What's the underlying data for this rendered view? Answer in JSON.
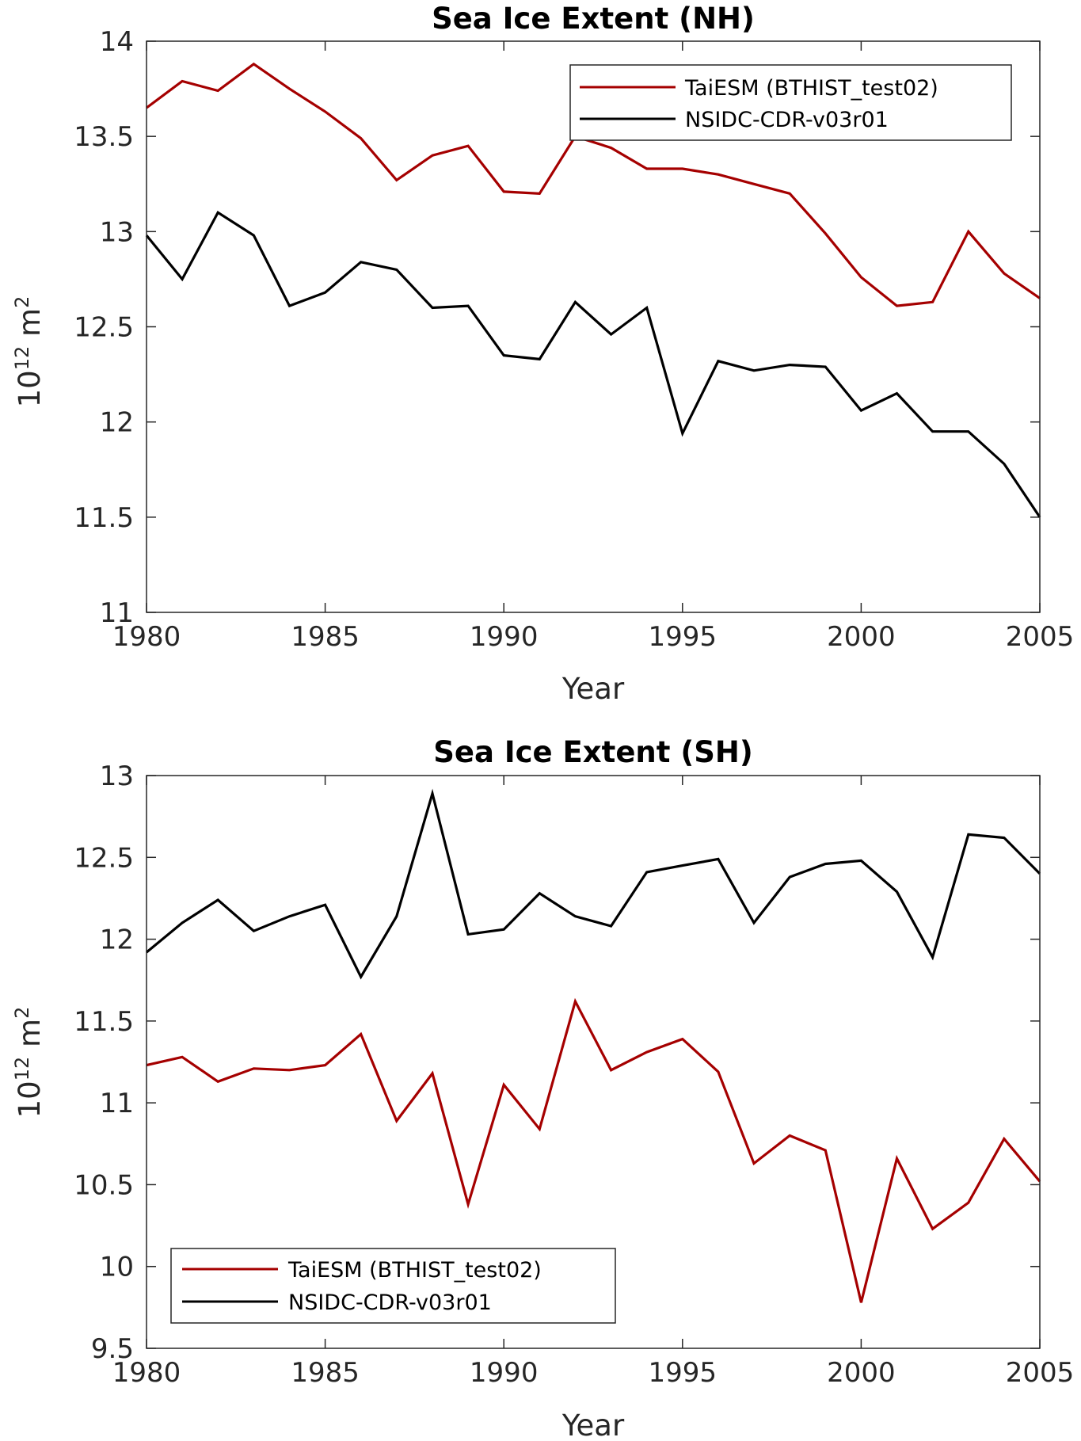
{
  "chart_data": [
    {
      "type": "line",
      "title": "Sea Ice Extent (NH)",
      "xlabel": "Year",
      "ylabel_base": "10",
      "ylabel_exp": "12",
      "ylabel_unit": "m",
      "ylabel_unit_exp": "2",
      "xlim": [
        1980,
        2005
      ],
      "ylim": [
        11,
        14
      ],
      "xticks": [
        1980,
        1985,
        1990,
        1995,
        2000,
        2005
      ],
      "yticks": [
        11,
        11.5,
        12,
        12.5,
        13,
        13.5,
        14
      ],
      "legend_position": "top-right",
      "grid": false,
      "x": [
        1980,
        1981,
        1982,
        1983,
        1984,
        1985,
        1986,
        1987,
        1988,
        1989,
        1990,
        1991,
        1992,
        1993,
        1994,
        1995,
        1996,
        1997,
        1998,
        1999,
        2000,
        2001,
        2002,
        2003,
        2004,
        2005
      ],
      "series": [
        {
          "name": "TaiESM (BTHIST_test02)",
          "color": "#a50000",
          "values": [
            13.65,
            13.79,
            13.74,
            13.88,
            13.75,
            13.63,
            13.49,
            13.27,
            13.4,
            13.45,
            13.21,
            13.2,
            13.5,
            13.44,
            13.33,
            13.33,
            13.3,
            13.25,
            13.2,
            12.99,
            12.76,
            12.61,
            12.63,
            13.0,
            12.78,
            12.65
          ]
        },
        {
          "name": "NSIDC-CDR-v03r01",
          "color": "#000000",
          "values": [
            12.98,
            12.75,
            13.1,
            12.98,
            12.61,
            12.68,
            12.84,
            12.8,
            12.6,
            12.61,
            12.35,
            12.33,
            12.63,
            12.46,
            12.6,
            11.94,
            12.32,
            12.27,
            12.3,
            12.29,
            12.06,
            12.15,
            11.95,
            11.95,
            11.78,
            11.5
          ]
        }
      ]
    },
    {
      "type": "line",
      "title": "Sea Ice Extent (SH)",
      "xlabel": "Year",
      "ylabel_base": "10",
      "ylabel_exp": "12",
      "ylabel_unit": "m",
      "ylabel_unit_exp": "2",
      "xlim": [
        1980,
        2005
      ],
      "ylim": [
        9.5,
        13
      ],
      "xticks": [
        1980,
        1985,
        1990,
        1995,
        2000,
        2005
      ],
      "yticks": [
        9.5,
        10,
        10.5,
        11,
        11.5,
        12,
        12.5,
        13
      ],
      "legend_position": "bottom-left",
      "grid": false,
      "x": [
        1980,
        1981,
        1982,
        1983,
        1984,
        1985,
        1986,
        1987,
        1988,
        1989,
        1990,
        1991,
        1992,
        1993,
        1994,
        1995,
        1996,
        1997,
        1998,
        1999,
        2000,
        2001,
        2002,
        2003,
        2004,
        2005
      ],
      "series": [
        {
          "name": "TaiESM (BTHIST_test02)",
          "color": "#a50000",
          "values": [
            11.23,
            11.28,
            11.13,
            11.21,
            11.2,
            11.23,
            11.42,
            10.89,
            11.18,
            10.38,
            11.11,
            10.84,
            11.62,
            11.2,
            11.31,
            11.39,
            11.19,
            10.63,
            10.8,
            10.71,
            9.78,
            10.66,
            10.23,
            10.39,
            10.78,
            10.52
          ]
        },
        {
          "name": "NSIDC-CDR-v03r01",
          "color": "#000000",
          "values": [
            11.92,
            12.1,
            12.24,
            12.05,
            12.14,
            12.21,
            11.77,
            12.14,
            12.89,
            12.03,
            12.06,
            12.28,
            12.14,
            12.08,
            12.41,
            12.45,
            12.49,
            12.1,
            12.38,
            12.46,
            12.48,
            12.29,
            11.89,
            12.64,
            12.62,
            12.4
          ]
        }
      ]
    }
  ]
}
